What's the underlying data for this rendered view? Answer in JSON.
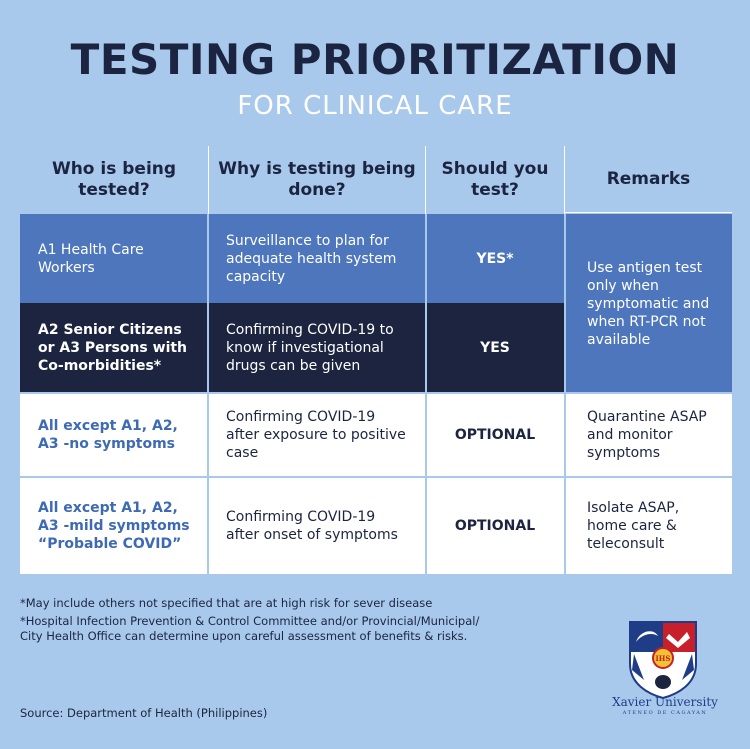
{
  "title": "TESTING PRIORITIZATION",
  "subtitle": "FOR CLINICAL CARE",
  "headers": [
    "Who is being tested?",
    "Why is testing being done?",
    "Should you test?",
    "Remarks"
  ],
  "rows": [
    {
      "who": "A1 Health Care Workers",
      "why": "Surveillance to plan for adequate health system capacity",
      "test": "YES*"
    },
    {
      "who": "A2 Senior Citizens or A3 Persons with Co-morbidities*",
      "why": "Confirming COVID-19 to know if investigational drugs can be given",
      "test": "YES"
    },
    {
      "who": "All except A1, A2, A3 -no symptoms",
      "why": "Confirming COVID-19 after exposure to positive case",
      "test": "OPTIONAL",
      "remark": "Quarantine ASAP and monitor symptoms"
    },
    {
      "who": "All except A1, A2, A3 -mild symptoms “Probable COVID”",
      "why": "Confirming COVID-19 after onset of symptoms",
      "test": "OPTIONAL",
      "remark": "Isolate ASAP, home care & teleconsult"
    }
  ],
  "merged_remark": "Use antigen test only when symptomatic and when RT-PCR not available",
  "footnotes": [
    "*May include others not specified that are at high risk for sever disease",
    "*Hospital Infection Prevention & Control Committee and/or Provincial/Municipal/ City Health Office can determine upon careful assessment of benefits & risks."
  ],
  "source": "Source: Department of Health (Philippines)",
  "logo": {
    "name": "Xavier University",
    "tagline": "ATENEO DE CAGAYAN",
    "monogram": "IHS"
  },
  "colors": {
    "background": "#a9c9ec",
    "navy": "#1c2440",
    "blue": "#4d76bd",
    "white": "#ffffff"
  }
}
